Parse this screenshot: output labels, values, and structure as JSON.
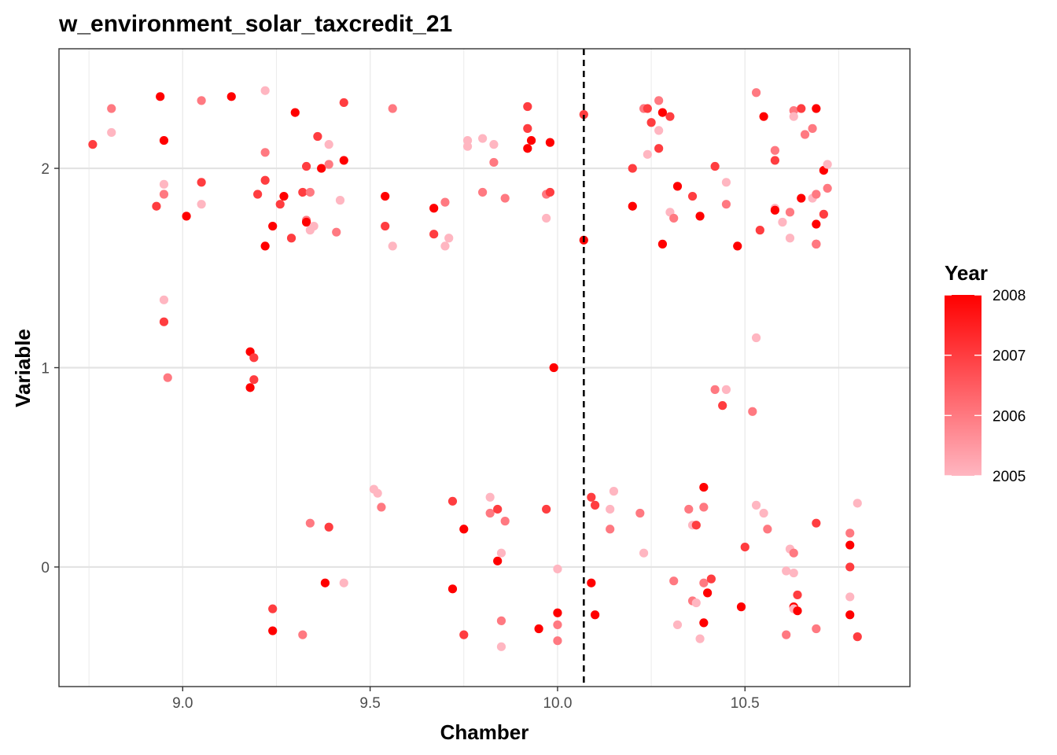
{
  "chart_data": {
    "type": "scatter",
    "title": "w_environment_solar_taxcredit_21",
    "xlabel": "Chamber",
    "ylabel": "Variable",
    "xlim": [
      8.67,
      10.94
    ],
    "ylim": [
      -0.6,
      2.6
    ],
    "x_ticks": [
      9.0,
      9.5,
      10.0,
      10.5
    ],
    "x_tick_labels": [
      "9.0",
      "9.5",
      "10.0",
      "10.5"
    ],
    "y_ticks": [
      0,
      1,
      2
    ],
    "y_tick_labels": [
      "0",
      "1",
      "2"
    ],
    "minor_x_gridlines": [
      8.75,
      9.25,
      9.75,
      10.25,
      10.75
    ],
    "grid": true,
    "vline": {
      "x": 10.07,
      "style": "dashed",
      "color": "#000000"
    },
    "color_scale": {
      "name": "Year",
      "min": 2005,
      "max": 2008,
      "low_color": "#FFB6C1",
      "high_color": "#FF0000",
      "breaks": [
        2005,
        2006,
        2007,
        2008
      ],
      "break_labels": [
        "2005",
        "2006",
        "2007",
        "2008"
      ],
      "position": "right"
    },
    "points": [
      {
        "x": 8.76,
        "y": 2.12,
        "year": 2007
      },
      {
        "x": 8.81,
        "y": 2.3,
        "year": 2006
      },
      {
        "x": 8.81,
        "y": 2.18,
        "year": 2005
      },
      {
        "x": 8.93,
        "y": 1.81,
        "year": 2007
      },
      {
        "x": 8.94,
        "y": 2.36,
        "year": 2008
      },
      {
        "x": 8.95,
        "y": 2.14,
        "year": 2008
      },
      {
        "x": 8.95,
        "y": 1.92,
        "year": 2005
      },
      {
        "x": 8.95,
        "y": 1.87,
        "year": 2006
      },
      {
        "x": 8.95,
        "y": 1.34,
        "year": 2005
      },
      {
        "x": 8.95,
        "y": 1.23,
        "year": 2007
      },
      {
        "x": 8.96,
        "y": 0.95,
        "year": 2006
      },
      {
        "x": 9.01,
        "y": 1.76,
        "year": 2008
      },
      {
        "x": 9.05,
        "y": 2.34,
        "year": 2006
      },
      {
        "x": 9.05,
        "y": 1.93,
        "year": 2007
      },
      {
        "x": 9.05,
        "y": 1.82,
        "year": 2005
      },
      {
        "x": 9.13,
        "y": 2.36,
        "year": 2008
      },
      {
        "x": 9.18,
        "y": 1.08,
        "year": 2008
      },
      {
        "x": 9.18,
        "y": 0.9,
        "year": 2008
      },
      {
        "x": 9.19,
        "y": 1.05,
        "year": 2007
      },
      {
        "x": 9.19,
        "y": 0.94,
        "year": 2007
      },
      {
        "x": 9.2,
        "y": 1.87,
        "year": 2007
      },
      {
        "x": 9.22,
        "y": 2.39,
        "year": 2005
      },
      {
        "x": 9.22,
        "y": 2.08,
        "year": 2006
      },
      {
        "x": 9.22,
        "y": 1.94,
        "year": 2007
      },
      {
        "x": 9.22,
        "y": 1.61,
        "year": 2008
      },
      {
        "x": 9.24,
        "y": 1.71,
        "year": 2008
      },
      {
        "x": 9.24,
        "y": -0.21,
        "year": 2007
      },
      {
        "x": 9.24,
        "y": -0.32,
        "year": 2008
      },
      {
        "x": 9.26,
        "y": 1.82,
        "year": 2007
      },
      {
        "x": 9.27,
        "y": 1.86,
        "year": 2008
      },
      {
        "x": 9.29,
        "y": 1.65,
        "year": 2007
      },
      {
        "x": 9.3,
        "y": 2.28,
        "year": 2008
      },
      {
        "x": 9.32,
        "y": 1.88,
        "year": 2007
      },
      {
        "x": 9.33,
        "y": 2.01,
        "year": 2007
      },
      {
        "x": 9.33,
        "y": 1.74,
        "year": 2006
      },
      {
        "x": 9.33,
        "y": 1.73,
        "year": 2008
      },
      {
        "x": 9.34,
        "y": 1.88,
        "year": 2006
      },
      {
        "x": 9.34,
        "y": 1.69,
        "year": 2005
      },
      {
        "x": 9.35,
        "y": 1.71,
        "year": 2005
      },
      {
        "x": 9.36,
        "y": 2.16,
        "year": 2007
      },
      {
        "x": 9.37,
        "y": 2.0,
        "year": 2008
      },
      {
        "x": 9.39,
        "y": 2.12,
        "year": 2005
      },
      {
        "x": 9.39,
        "y": 2.02,
        "year": 2006
      },
      {
        "x": 9.41,
        "y": 1.68,
        "year": 2006
      },
      {
        "x": 9.42,
        "y": 1.84,
        "year": 2005
      },
      {
        "x": 9.43,
        "y": 2.33,
        "year": 2007
      },
      {
        "x": 9.43,
        "y": 2.04,
        "year": 2008
      },
      {
        "x": 9.32,
        "y": -0.34,
        "year": 2006
      },
      {
        "x": 9.34,
        "y": 0.22,
        "year": 2006
      },
      {
        "x": 9.38,
        "y": -0.08,
        "year": 2008
      },
      {
        "x": 9.39,
        "y": 0.2,
        "year": 2007
      },
      {
        "x": 9.43,
        "y": -0.08,
        "year": 2005
      },
      {
        "x": 9.51,
        "y": 0.39,
        "year": 2005
      },
      {
        "x": 9.52,
        "y": 0.37,
        "year": 2005
      },
      {
        "x": 9.53,
        "y": 0.3,
        "year": 2006
      },
      {
        "x": 9.54,
        "y": 1.86,
        "year": 2008
      },
      {
        "x": 9.54,
        "y": 1.71,
        "year": 2007
      },
      {
        "x": 9.56,
        "y": 2.3,
        "year": 2006
      },
      {
        "x": 9.56,
        "y": 1.61,
        "year": 2005
      },
      {
        "x": 9.67,
        "y": 1.8,
        "year": 2008
      },
      {
        "x": 9.67,
        "y": 1.67,
        "year": 2007
      },
      {
        "x": 9.7,
        "y": 1.83,
        "year": 2006
      },
      {
        "x": 9.7,
        "y": 1.61,
        "year": 2005
      },
      {
        "x": 9.71,
        "y": 1.65,
        "year": 2005
      },
      {
        "x": 9.72,
        "y": 0.33,
        "year": 2007
      },
      {
        "x": 9.72,
        "y": -0.11,
        "year": 2008
      },
      {
        "x": 9.75,
        "y": 0.19,
        "year": 2008
      },
      {
        "x": 9.75,
        "y": -0.34,
        "year": 2007
      },
      {
        "x": 9.76,
        "y": 2.14,
        "year": 2005
      },
      {
        "x": 9.76,
        "y": 2.11,
        "year": 2005
      },
      {
        "x": 9.8,
        "y": 2.15,
        "year": 2005
      },
      {
        "x": 9.8,
        "y": 1.88,
        "year": 2006
      },
      {
        "x": 9.82,
        "y": 0.35,
        "year": 2005
      },
      {
        "x": 9.82,
        "y": 0.27,
        "year": 2006
      },
      {
        "x": 9.83,
        "y": 2.12,
        "year": 2005
      },
      {
        "x": 9.83,
        "y": 2.03,
        "year": 2006
      },
      {
        "x": 9.84,
        "y": 0.29,
        "year": 2007
      },
      {
        "x": 9.84,
        "y": 0.03,
        "year": 2008
      },
      {
        "x": 9.85,
        "y": 0.07,
        "year": 2005
      },
      {
        "x": 9.85,
        "y": -0.27,
        "year": 2006
      },
      {
        "x": 9.85,
        "y": -0.4,
        "year": 2005
      },
      {
        "x": 9.86,
        "y": 1.85,
        "year": 2006
      },
      {
        "x": 9.86,
        "y": 0.23,
        "year": 2006
      },
      {
        "x": 9.92,
        "y": 2.31,
        "year": 2007
      },
      {
        "x": 9.92,
        "y": 2.2,
        "year": 2007
      },
      {
        "x": 9.92,
        "y": 2.1,
        "year": 2008
      },
      {
        "x": 9.93,
        "y": 2.14,
        "year": 2008
      },
      {
        "x": 9.95,
        "y": -0.31,
        "year": 2008
      },
      {
        "x": 9.97,
        "y": 1.87,
        "year": 2006
      },
      {
        "x": 9.97,
        "y": 1.75,
        "year": 2005
      },
      {
        "x": 9.97,
        "y": 0.29,
        "year": 2007
      },
      {
        "x": 9.98,
        "y": 2.13,
        "year": 2008
      },
      {
        "x": 9.98,
        "y": 1.88,
        "year": 2007
      },
      {
        "x": 9.99,
        "y": 1.0,
        "year": 2008
      },
      {
        "x": 10.0,
        "y": -0.01,
        "year": 2005
      },
      {
        "x": 10.0,
        "y": -0.23,
        "year": 2008
      },
      {
        "x": 10.0,
        "y": -0.29,
        "year": 2006
      },
      {
        "x": 10.0,
        "y": -0.37,
        "year": 2006
      },
      {
        "x": 10.07,
        "y": 2.27,
        "year": 2007
      },
      {
        "x": 10.07,
        "y": 1.64,
        "year": 2008
      },
      {
        "x": 10.09,
        "y": 0.35,
        "year": 2007
      },
      {
        "x": 10.09,
        "y": -0.08,
        "year": 2008
      },
      {
        "x": 10.1,
        "y": 0.31,
        "year": 2007
      },
      {
        "x": 10.1,
        "y": -0.24,
        "year": 2008
      },
      {
        "x": 10.14,
        "y": 0.29,
        "year": 2005
      },
      {
        "x": 10.14,
        "y": 0.19,
        "year": 2006
      },
      {
        "x": 10.15,
        "y": 0.38,
        "year": 2005
      },
      {
        "x": 10.2,
        "y": 2.0,
        "year": 2007
      },
      {
        "x": 10.2,
        "y": 1.81,
        "year": 2008
      },
      {
        "x": 10.22,
        "y": 0.27,
        "year": 2006
      },
      {
        "x": 10.23,
        "y": 0.07,
        "year": 2005
      },
      {
        "x": 10.23,
        "y": 2.3,
        "year": 2006
      },
      {
        "x": 10.24,
        "y": 2.3,
        "year": 2007
      },
      {
        "x": 10.24,
        "y": 2.07,
        "year": 2005
      },
      {
        "x": 10.25,
        "y": 2.23,
        "year": 2007
      },
      {
        "x": 10.27,
        "y": 2.34,
        "year": 2006
      },
      {
        "x": 10.27,
        "y": 2.19,
        "year": 2005
      },
      {
        "x": 10.27,
        "y": 2.1,
        "year": 2007
      },
      {
        "x": 10.28,
        "y": 2.28,
        "year": 2008
      },
      {
        "x": 10.28,
        "y": 1.62,
        "year": 2008
      },
      {
        "x": 10.3,
        "y": 2.26,
        "year": 2007
      },
      {
        "x": 10.3,
        "y": 1.78,
        "year": 2005
      },
      {
        "x": 10.31,
        "y": 1.75,
        "year": 2006
      },
      {
        "x": 10.31,
        "y": -0.07,
        "year": 2006
      },
      {
        "x": 10.32,
        "y": 1.91,
        "year": 2008
      },
      {
        "x": 10.32,
        "y": -0.29,
        "year": 2005
      },
      {
        "x": 10.35,
        "y": 0.29,
        "year": 2006
      },
      {
        "x": 10.36,
        "y": 1.86,
        "year": 2007
      },
      {
        "x": 10.36,
        "y": 0.21,
        "year": 2005
      },
      {
        "x": 10.36,
        "y": -0.17,
        "year": 2006
      },
      {
        "x": 10.37,
        "y": 0.21,
        "year": 2007
      },
      {
        "x": 10.37,
        "y": -0.18,
        "year": 2005
      },
      {
        "x": 10.38,
        "y": 1.76,
        "year": 2008
      },
      {
        "x": 10.38,
        "y": -0.36,
        "year": 2005
      },
      {
        "x": 10.39,
        "y": 0.4,
        "year": 2008
      },
      {
        "x": 10.39,
        "y": 0.3,
        "year": 2006
      },
      {
        "x": 10.39,
        "y": -0.08,
        "year": 2006
      },
      {
        "x": 10.39,
        "y": -0.28,
        "year": 2008
      },
      {
        "x": 10.4,
        "y": -0.13,
        "year": 2008
      },
      {
        "x": 10.41,
        "y": -0.06,
        "year": 2007
      },
      {
        "x": 10.42,
        "y": 2.01,
        "year": 2007
      },
      {
        "x": 10.42,
        "y": 0.89,
        "year": 2006
      },
      {
        "x": 10.44,
        "y": 0.81,
        "year": 2007
      },
      {
        "x": 10.45,
        "y": 0.89,
        "year": 2005
      },
      {
        "x": 10.45,
        "y": 1.82,
        "year": 2006
      },
      {
        "x": 10.45,
        "y": 1.93,
        "year": 2005
      },
      {
        "x": 10.48,
        "y": 1.61,
        "year": 2008
      },
      {
        "x": 10.49,
        "y": -0.2,
        "year": 2008
      },
      {
        "x": 10.5,
        "y": 0.1,
        "year": 2007
      },
      {
        "x": 10.52,
        "y": 0.78,
        "year": 2006
      },
      {
        "x": 10.53,
        "y": 2.38,
        "year": 2006
      },
      {
        "x": 10.53,
        "y": 1.15,
        "year": 2005
      },
      {
        "x": 10.53,
        "y": 0.31,
        "year": 2005
      },
      {
        "x": 10.54,
        "y": 1.69,
        "year": 2007
      },
      {
        "x": 10.55,
        "y": 2.26,
        "year": 2008
      },
      {
        "x": 10.55,
        "y": 0.27,
        "year": 2005
      },
      {
        "x": 10.56,
        "y": 0.19,
        "year": 2006
      },
      {
        "x": 10.58,
        "y": 2.09,
        "year": 2006
      },
      {
        "x": 10.58,
        "y": 2.04,
        "year": 2007
      },
      {
        "x": 10.58,
        "y": 1.8,
        "year": 2005
      },
      {
        "x": 10.58,
        "y": 1.79,
        "year": 2008
      },
      {
        "x": 10.6,
        "y": 1.73,
        "year": 2005
      },
      {
        "x": 10.61,
        "y": -0.02,
        "year": 2005
      },
      {
        "x": 10.61,
        "y": -0.34,
        "year": 2006
      },
      {
        "x": 10.62,
        "y": 1.78,
        "year": 2006
      },
      {
        "x": 10.62,
        "y": 1.65,
        "year": 2005
      },
      {
        "x": 10.62,
        "y": 0.09,
        "year": 2005
      },
      {
        "x": 10.63,
        "y": 2.29,
        "year": 2006
      },
      {
        "x": 10.63,
        "y": 2.26,
        "year": 2005
      },
      {
        "x": 10.63,
        "y": 0.07,
        "year": 2006
      },
      {
        "x": 10.63,
        "y": -0.03,
        "year": 2005
      },
      {
        "x": 10.63,
        "y": -0.2,
        "year": 2008
      },
      {
        "x": 10.63,
        "y": -0.21,
        "year": 2005
      },
      {
        "x": 10.64,
        "y": -0.22,
        "year": 2008
      },
      {
        "x": 10.64,
        "y": -0.14,
        "year": 2007
      },
      {
        "x": 10.65,
        "y": 2.3,
        "year": 2007
      },
      {
        "x": 10.65,
        "y": 1.85,
        "year": 2008
      },
      {
        "x": 10.66,
        "y": 2.17,
        "year": 2006
      },
      {
        "x": 10.68,
        "y": 2.2,
        "year": 2006
      },
      {
        "x": 10.68,
        "y": 1.85,
        "year": 2005
      },
      {
        "x": 10.69,
        "y": 2.3,
        "year": 2008
      },
      {
        "x": 10.69,
        "y": 1.87,
        "year": 2006
      },
      {
        "x": 10.69,
        "y": 1.62,
        "year": 2007
      },
      {
        "x": 10.69,
        "y": 1.62,
        "year": 2006
      },
      {
        "x": 10.69,
        "y": 1.72,
        "year": 2008
      },
      {
        "x": 10.69,
        "y": 0.22,
        "year": 2007
      },
      {
        "x": 10.69,
        "y": -0.31,
        "year": 2006
      },
      {
        "x": 10.71,
        "y": 1.99,
        "year": 2008
      },
      {
        "x": 10.71,
        "y": 1.77,
        "year": 2007
      },
      {
        "x": 10.72,
        "y": 2.02,
        "year": 2005
      },
      {
        "x": 10.72,
        "y": 1.9,
        "year": 2006
      },
      {
        "x": 10.78,
        "y": 0.17,
        "year": 2006
      },
      {
        "x": 10.78,
        "y": 0.11,
        "year": 2008
      },
      {
        "x": 10.78,
        "y": 0.0,
        "year": 2007
      },
      {
        "x": 10.78,
        "y": -0.15,
        "year": 2005
      },
      {
        "x": 10.78,
        "y": -0.24,
        "year": 2008
      },
      {
        "x": 10.8,
        "y": 0.32,
        "year": 2005
      },
      {
        "x": 10.8,
        "y": -0.35,
        "year": 2007
      }
    ]
  }
}
